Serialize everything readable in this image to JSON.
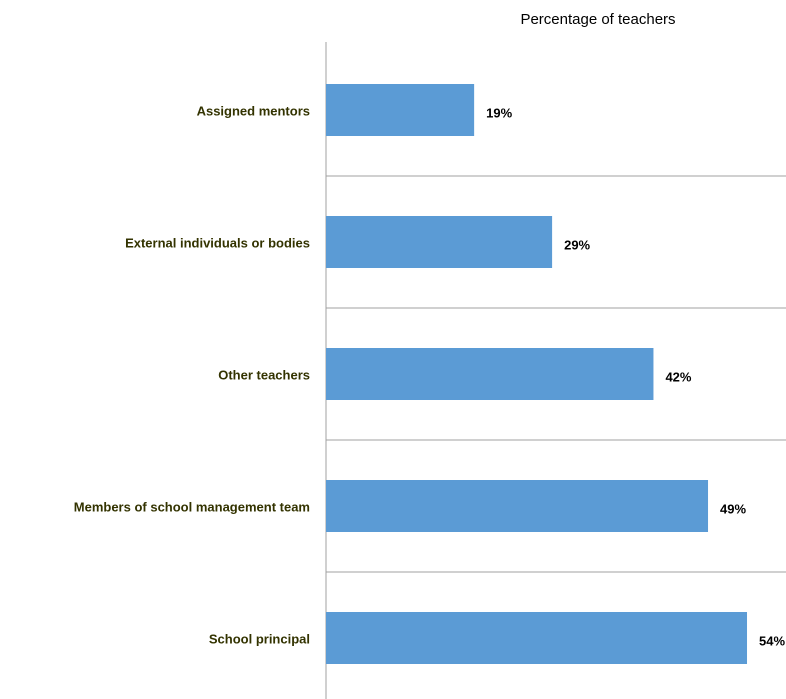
{
  "chart_data": {
    "type": "bar",
    "orientation": "horizontal",
    "x_label": "Percentage of teachers",
    "categories": [
      "Assigned mentors",
      "External individuals or bodies",
      "Other teachers",
      "Members of school management team",
      "School principal"
    ],
    "values": [
      19,
      29,
      42,
      49,
      54
    ],
    "value_labels": [
      "19%",
      "29%",
      "42%",
      "49%",
      "54%"
    ],
    "color": "#5b9bd5",
    "xlim": [
      0,
      59
    ]
  }
}
